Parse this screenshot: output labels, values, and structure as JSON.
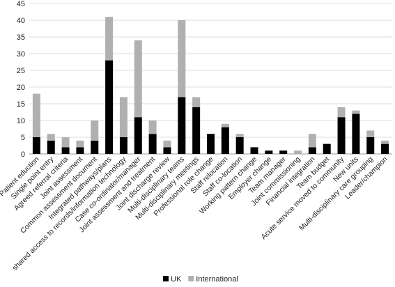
{
  "chart_data": {
    "type": "bar",
    "stacked": true,
    "categories": [
      "Patient eduction",
      "Single point entry",
      "Agreed referral criteria",
      "Joint assessment",
      "Common assessment document",
      "Integrated pathways/plans",
      "shared access to records/information technology",
      "Case co-ordinator/manager",
      "Joint assessment and treatment",
      "Joint discharge review",
      "Multi-disciplinary teams",
      "Multi-disciplinary meetings",
      "Professional role change",
      "Staff relocation",
      "Staff co-location",
      "Working pattern change",
      "Employer change",
      "Team manager",
      "Joint commissioning",
      "Financial integration",
      "Team budget",
      "Acute service moved to community",
      "New units",
      "Multi-disciplinary care grouping",
      "Leader/champion"
    ],
    "series": [
      {
        "name": "UK",
        "color": "#000000",
        "values": [
          5,
          4,
          2,
          2,
          4,
          28,
          5,
          11,
          6,
          2,
          17,
          14,
          6,
          8,
          5,
          2,
          1,
          1,
          0,
          2,
          3,
          11,
          12,
          5,
          3
        ]
      },
      {
        "name": "International",
        "color": "#b0b0b0",
        "values": [
          13,
          2,
          3,
          2,
          6,
          13,
          12,
          23,
          4,
          2,
          23,
          3,
          0,
          1,
          1,
          0,
          0,
          0,
          1,
          4,
          0,
          3,
          1,
          2,
          1
        ]
      }
    ],
    "ylim": [
      0,
      45
    ],
    "yticks": [
      "0",
      "5",
      "10",
      "15",
      "20",
      "25",
      "30",
      "35",
      "40",
      "45"
    ],
    "ytick_values": [
      0,
      5,
      10,
      15,
      20,
      25,
      30,
      35,
      40,
      45
    ],
    "grid": true,
    "legend_position": "bottom-center",
    "title": "",
    "xlabel": "",
    "ylabel": ""
  }
}
